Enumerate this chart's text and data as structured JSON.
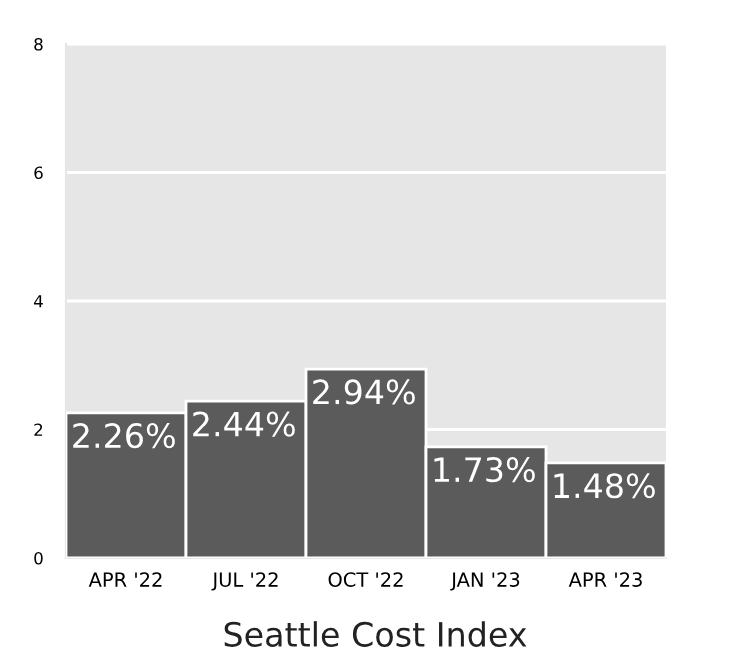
{
  "chart_data": {
    "type": "bar",
    "title": "Seattle Cost Index",
    "categories": [
      "APR '22",
      "JUL '22",
      "OCT '22",
      "JAN '23",
      "APR '23"
    ],
    "values": [
      2.26,
      2.44,
      2.94,
      1.73,
      1.48
    ],
    "value_labels": [
      "2.26%",
      "2.44%",
      "2.94%",
      "1.73%",
      "1.48%"
    ],
    "color": "#5b5b5c",
    "ylim": [
      0,
      8
    ],
    "yticks": [
      0,
      2,
      4,
      6,
      8
    ],
    "grid": "y"
  }
}
